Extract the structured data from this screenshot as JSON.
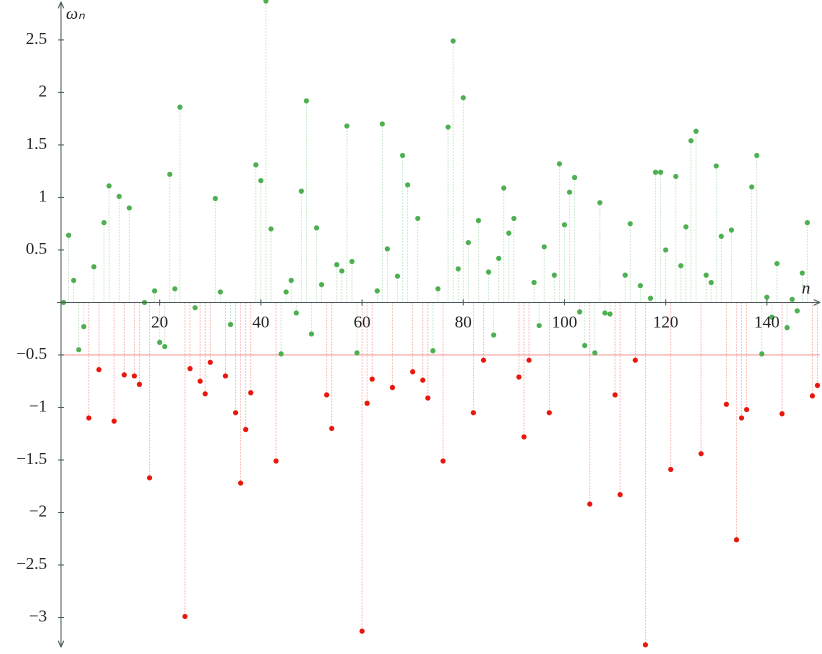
{
  "chart_data": {
    "type": "stem",
    "x_label": "n",
    "y_label": "ωₙ",
    "x": [
      1,
      2,
      3,
      4,
      5,
      6,
      7,
      8,
      9,
      10,
      11,
      12,
      13,
      14,
      15,
      16,
      17,
      18,
      19,
      20,
      21,
      22,
      23,
      24,
      25,
      26,
      27,
      28,
      29,
      30,
      31,
      32,
      33,
      34,
      35,
      36,
      37,
      38,
      39,
      40,
      41,
      42,
      43,
      44,
      45,
      46,
      47,
      48,
      49,
      50,
      51,
      52,
      53,
      54,
      55,
      56,
      57,
      58,
      59,
      60,
      61,
      62,
      63,
      64,
      65,
      66,
      67,
      68,
      69,
      70,
      71,
      72,
      73,
      74,
      75,
      76,
      77,
      78,
      79,
      80,
      81,
      82,
      83,
      84,
      85,
      86,
      87,
      88,
      89,
      90,
      91,
      92,
      93,
      94,
      95,
      96,
      97,
      98,
      99,
      100,
      101,
      102,
      103,
      104,
      105,
      106,
      107,
      108,
      109,
      110,
      111,
      112,
      113,
      114,
      115,
      116,
      117,
      118,
      119,
      120,
      121,
      122,
      123,
      124,
      125,
      126,
      127,
      128,
      129,
      130,
      131,
      132,
      133,
      134,
      135,
      136,
      137,
      138,
      139,
      140,
      141,
      142,
      143,
      144,
      145,
      146,
      147,
      148,
      149,
      150
    ],
    "values": [
      0,
      0.64,
      0.21,
      -0.45,
      -0.23,
      -1.1,
      0.34,
      -0.64,
      0.76,
      1.11,
      -1.13,
      1.01,
      -0.69,
      0.9,
      -0.7,
      -0.78,
      0,
      -1.67,
      0.11,
      -0.38,
      -0.42,
      1.22,
      0.13,
      1.86,
      -2.99,
      -0.63,
      -0.05,
      -0.75,
      -0.87,
      -0.57,
      0.99,
      0.1,
      -0.7,
      -0.21,
      -1.05,
      -1.72,
      -1.21,
      -0.86,
      1.31,
      1.16,
      2.87,
      0.7,
      -1.51,
      -0.49,
      0.1,
      0.21,
      -0.1,
      1.06,
      1.92,
      -0.3,
      0.71,
      0.17,
      -0.88,
      -1.2,
      0.36,
      0.3,
      1.68,
      0.39,
      -0.48,
      -3.13,
      -0.96,
      -0.73,
      0.11,
      1.7,
      0.51,
      -0.81,
      0.25,
      1.4,
      1.12,
      -0.66,
      0.8,
      -0.74,
      -0.91,
      -0.46,
      0.13,
      -1.51,
      1.67,
      2.49,
      0.32,
      1.95,
      0.57,
      -1.05,
      0.78,
      -0.55,
      0.29,
      -0.31,
      0.42,
      1.09,
      0.66,
      0.8,
      -0.71,
      -1.28,
      -0.55,
      0.19,
      -0.22,
      0.53,
      -1.05,
      0.26,
      1.32,
      0.74,
      1.05,
      1.19,
      -0.09,
      -0.41,
      -1.92,
      -0.48,
      0.95,
      -0.1,
      -0.11,
      -0.88,
      -1.83,
      0.26,
      0.75,
      -0.55,
      0.16,
      -3.26,
      0.04,
      1.24,
      1.24,
      0.5,
      -1.59,
      1.2,
      0.35,
      0.72,
      1.54,
      1.63,
      -1.44,
      0.26,
      0.19,
      1.3,
      0.63,
      -0.97,
      0.69,
      -2.26,
      -1.1,
      -1.02,
      1.1,
      1.4,
      -0.49,
      0.05,
      -0.14,
      0.37,
      -1.06,
      -0.24,
      0.03,
      -0.08,
      0.28,
      0.76,
      -0.89,
      -0.79
    ],
    "colors": {
      "above": "#4caf50",
      "below": "#e8160c"
    },
    "reference_line": {
      "value": -0.5,
      "color": "#f7a3a3"
    },
    "xlim": [
      0.5,
      150.5
    ],
    "ylim": [
      -3.3,
      2.88
    ],
    "xticks": [
      20,
      40,
      60,
      80,
      100,
      120,
      140
    ],
    "yticks": [
      {
        "value": -3,
        "label": "−3"
      },
      {
        "value": -2.5,
        "label": "−2.5"
      },
      {
        "value": -2,
        "label": "−2"
      },
      {
        "value": -1.5,
        "label": "−1.5"
      },
      {
        "value": -1,
        "label": "−1"
      },
      {
        "value": -0.5,
        "label": "−0.5"
      },
      0.5,
      1,
      1.5,
      2,
      2.5
    ]
  }
}
